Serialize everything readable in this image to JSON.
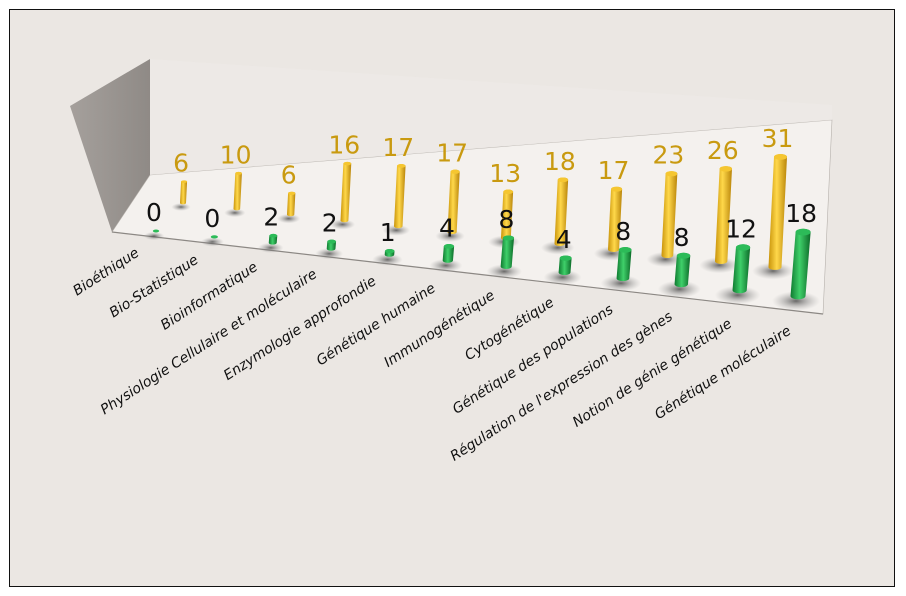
{
  "chart_data": {
    "type": "bar",
    "categories": [
      "Bioéthique",
      "Bio-Statistique",
      "Bioinformatique",
      "Physiologie Cellulaire et moléculaire",
      "Enzymologie approfondie",
      "Génétique humaine",
      "Immunogénétique",
      "Cytogénétique",
      "Génétique des populations",
      "Régulation de l'expression des gènes",
      "Notion de génie génétique",
      "Génétique moléculaire"
    ],
    "series": [
      {
        "values": [
          0,
          0,
          2,
          2,
          1,
          4,
          8,
          4,
          8,
          8,
          12,
          18
        ],
        "color": "#1fa54a"
      },
      {
        "values": [
          6,
          10,
          6,
          16,
          17,
          17,
          13,
          18,
          17,
          23,
          26,
          31
        ],
        "color": "#e8b417"
      }
    ],
    "label_colors": [
      "#111111",
      "#c99a10"
    ],
    "title": "",
    "xlabel": "",
    "ylabel": "",
    "grid": false,
    "legend": "none"
  }
}
